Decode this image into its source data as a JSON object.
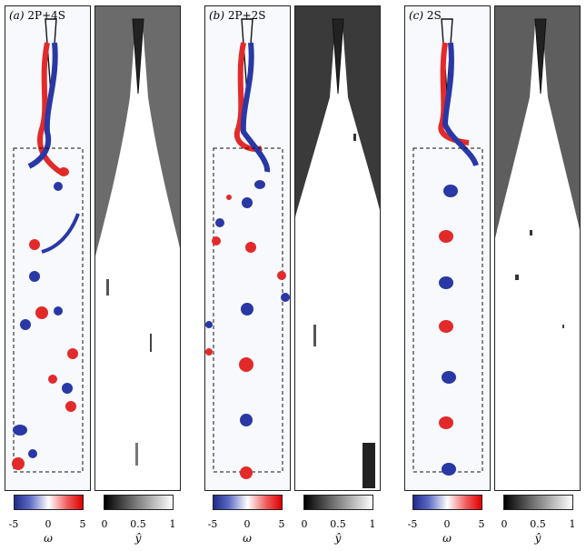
{
  "panels": [
    {
      "letter": "(a)",
      "label": "2P+4S"
    },
    {
      "letter": "(b)",
      "label": "2P+2S"
    },
    {
      "letter": "(c)",
      "label": "2S"
    }
  ],
  "colorbars": {
    "vorticity": {
      "ticks": [
        "-5",
        "0",
        "5"
      ],
      "symbol": "ω",
      "colors": [
        "#1f2b8a",
        "#ffffff",
        "#e00000"
      ]
    },
    "yhat": {
      "ticks": [
        "0",
        "0.5",
        "1"
      ],
      "symbol": "ŷ",
      "colors": [
        "#000000",
        "#ffffff"
      ]
    }
  }
}
